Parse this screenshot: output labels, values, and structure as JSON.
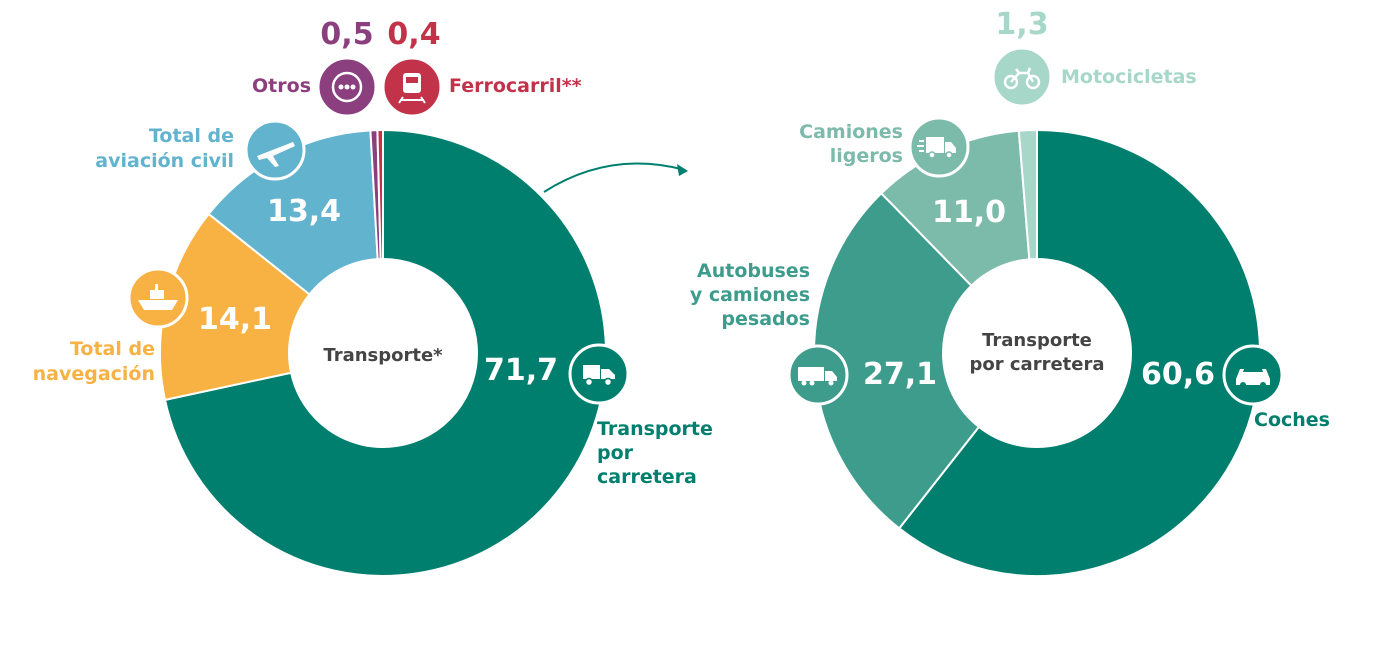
{
  "colors": {
    "road": "#007f6e",
    "navigation": "#f7b243",
    "aviation": "#62b3ce",
    "others": "#8b3f7e",
    "rail": "#c2334a",
    "cars": "#007f6e",
    "heavy": "#3d9c8c",
    "light": "#7cbaaa",
    "moto": "#a7d7c8"
  },
  "chart_data": [
    {
      "type": "pie",
      "center_label": "Transporte*",
      "slices": [
        {
          "name": "Transporte por carretera",
          "value": 71.7,
          "label": "71,7",
          "color": "#007f6e",
          "icon": "truck-icon"
        },
        {
          "name": "Total de navegación",
          "value": 14.1,
          "label": "14,1",
          "color": "#f7b243",
          "icon": "ship-icon"
        },
        {
          "name": "Total de aviación civil",
          "value": 13.4,
          "label": "13,4",
          "color": "#62b3ce",
          "icon": "airplane-icon"
        },
        {
          "name": "Otros",
          "value": 0.5,
          "label": "0,5",
          "color": "#8b3f7e",
          "icon": "more-dots-icon"
        },
        {
          "name": "Ferrocarril**",
          "value": 0.4,
          "label": "0,4",
          "color": "#c2334a",
          "icon": "train-icon"
        }
      ]
    },
    {
      "type": "pie",
      "center_label": "Transporte por carretera",
      "slices": [
        {
          "name": "Coches",
          "value": 60.6,
          "label": "60,6",
          "color": "#007f6e",
          "icon": "car-icon"
        },
        {
          "name": "Autobuses y camiones pesados",
          "value": 27.1,
          "label": "27,1",
          "color": "#3d9c8c",
          "icon": "heavy-truck-icon"
        },
        {
          "name": "Camiones ligeros",
          "value": 11.0,
          "label": "11,0",
          "color": "#7cbaaa",
          "icon": "van-icon"
        },
        {
          "name": "Motocicletas",
          "value": 1.3,
          "label": "1,3",
          "color": "#a7d7c8",
          "icon": "motorcycle-icon"
        }
      ]
    }
  ],
  "labels": {
    "left_center_1": "Transporte*",
    "right_center_1": "Transporte",
    "right_center_2": "por carretera",
    "road_1": "Transporte",
    "road_2": "por",
    "road_3": "carretera",
    "nav_1": "Total de",
    "nav_2": "navegación",
    "avi_1": "Total de",
    "avi_2": "aviación civil",
    "otros": "Otros",
    "ferro": "Ferrocarril**",
    "coches": "Coches",
    "heavy_1": "Autobuses",
    "heavy_2": "y camiones",
    "heavy_3": "pesados",
    "light_1": "Camiones",
    "light_2": "ligeros",
    "moto": "Motocicletas"
  }
}
